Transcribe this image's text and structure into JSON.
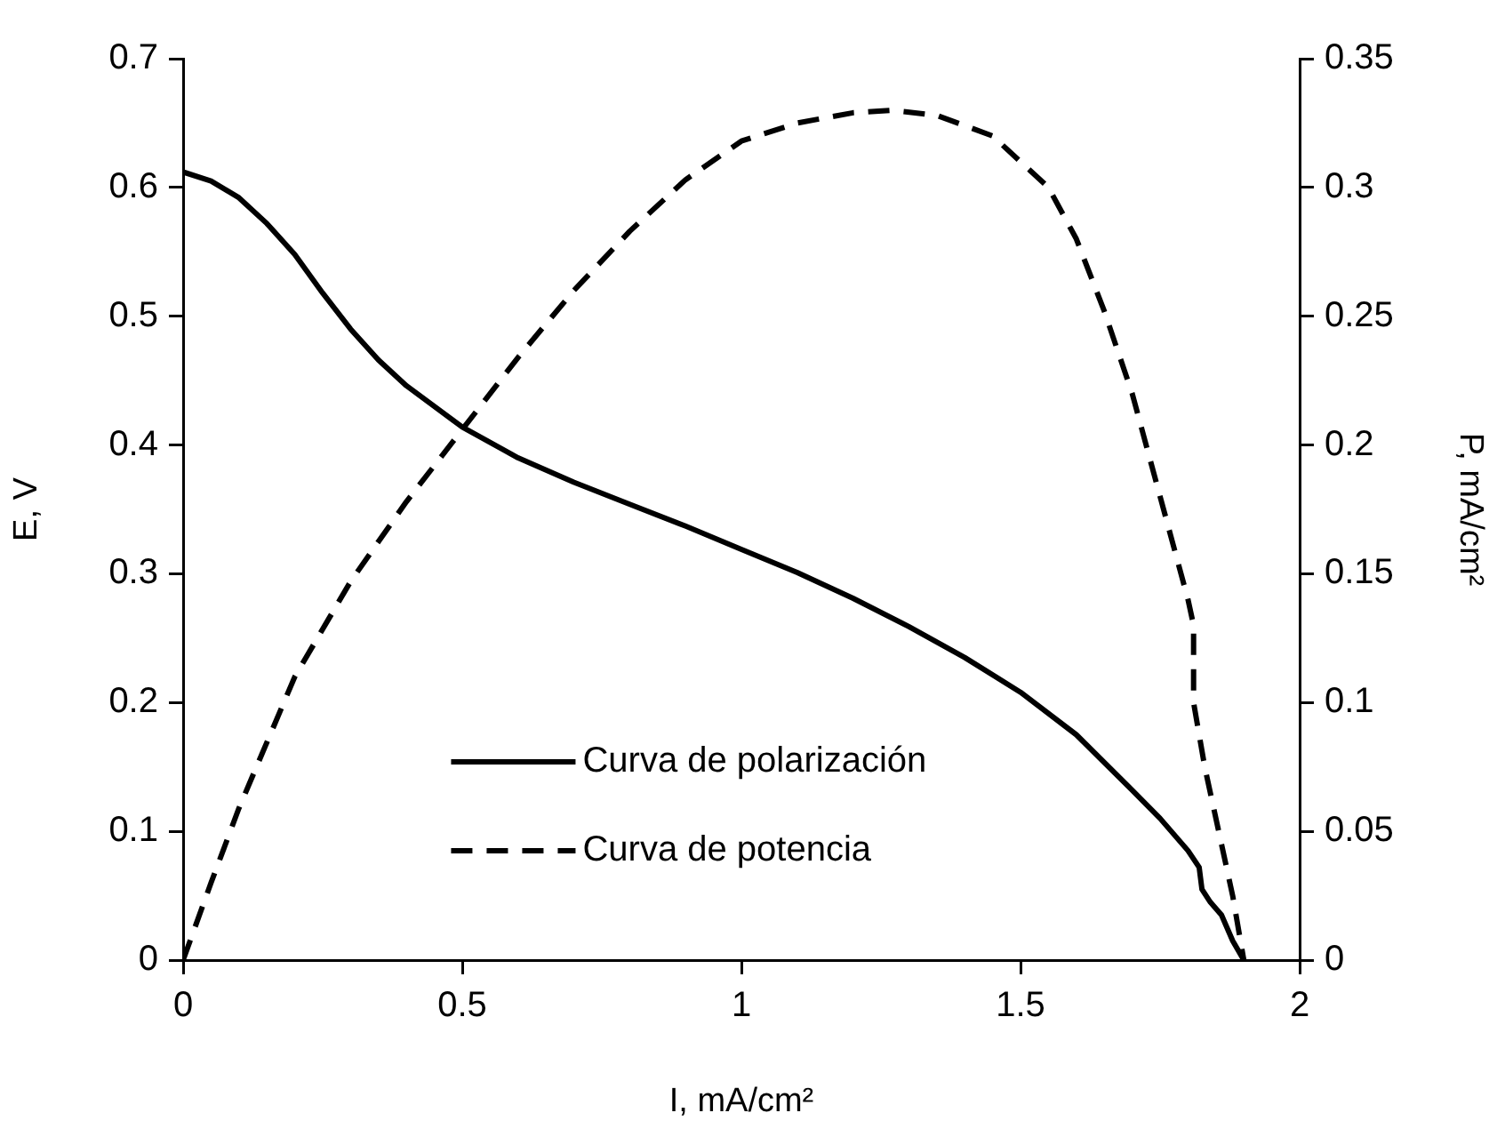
{
  "chart_data": {
    "type": "line",
    "xlabel": "I, mA/cm²",
    "ylabel": "E, V",
    "y2label": "P, mA/cm²",
    "xlim": [
      0,
      2
    ],
    "xticks": [
      0,
      0.5,
      1,
      1.5,
      2
    ],
    "ylim": [
      0,
      0.7
    ],
    "yticks": [
      0,
      0.1,
      0.2,
      0.3,
      0.4,
      0.5,
      0.6,
      0.7
    ],
    "y2lim": [
      0,
      0.35
    ],
    "y2ticks": [
      0,
      0.05,
      0.1,
      0.15,
      0.2,
      0.25,
      0.3,
      0.35
    ],
    "grid": false,
    "legend": "bottom",
    "marker": "none",
    "series": [
      {
        "name": "Curva de polarización",
        "color": "#000000",
        "line_style": "solid",
        "x": [
          0,
          0.05,
          0.1,
          0.15,
          0.2,
          0.25,
          0.3,
          0.35,
          0.4,
          0.5,
          0.6,
          0.7,
          0.8,
          0.9,
          1.0,
          1.1,
          1.2,
          1.3,
          1.4,
          1.5,
          1.6,
          1.7,
          1.75,
          1.8,
          1.82,
          1.825,
          1.84,
          1.86,
          1.87,
          1.88,
          1.9
        ],
        "values": [
          0.612,
          0.605,
          0.592,
          0.572,
          0.548,
          0.518,
          0.49,
          0.466,
          0.446,
          0.414,
          0.39,
          0.371,
          0.354,
          0.337,
          0.319,
          0.301,
          0.281,
          0.259,
          0.235,
          0.208,
          0.175,
          0.132,
          0.11,
          0.085,
          0.072,
          0.055,
          0.045,
          0.035,
          0.025,
          0.015,
          0
        ]
      },
      {
        "name": "Curva de potencia",
        "color": "#000000",
        "line_style": "dashed",
        "axis": "y2",
        "x": [
          0,
          0.05,
          0.1,
          0.2,
          0.3,
          0.4,
          0.5,
          0.6,
          0.7,
          0.8,
          0.9,
          1.0,
          1.1,
          1.2,
          1.27,
          1.35,
          1.45,
          1.55,
          1.6,
          1.65,
          1.7,
          1.75,
          1.8,
          1.81,
          1.81,
          1.83,
          1.86,
          1.88,
          1.9
        ],
        "values": [
          0,
          0.03,
          0.059,
          0.11,
          0.147,
          0.178,
          0.206,
          0.234,
          0.26,
          0.283,
          0.303,
          0.318,
          0.325,
          0.329,
          0.33,
          0.328,
          0.32,
          0.3,
          0.28,
          0.252,
          0.22,
          0.18,
          0.14,
          0.13,
          0.1,
          0.075,
          0.045,
          0.025,
          0
        ]
      }
    ]
  }
}
